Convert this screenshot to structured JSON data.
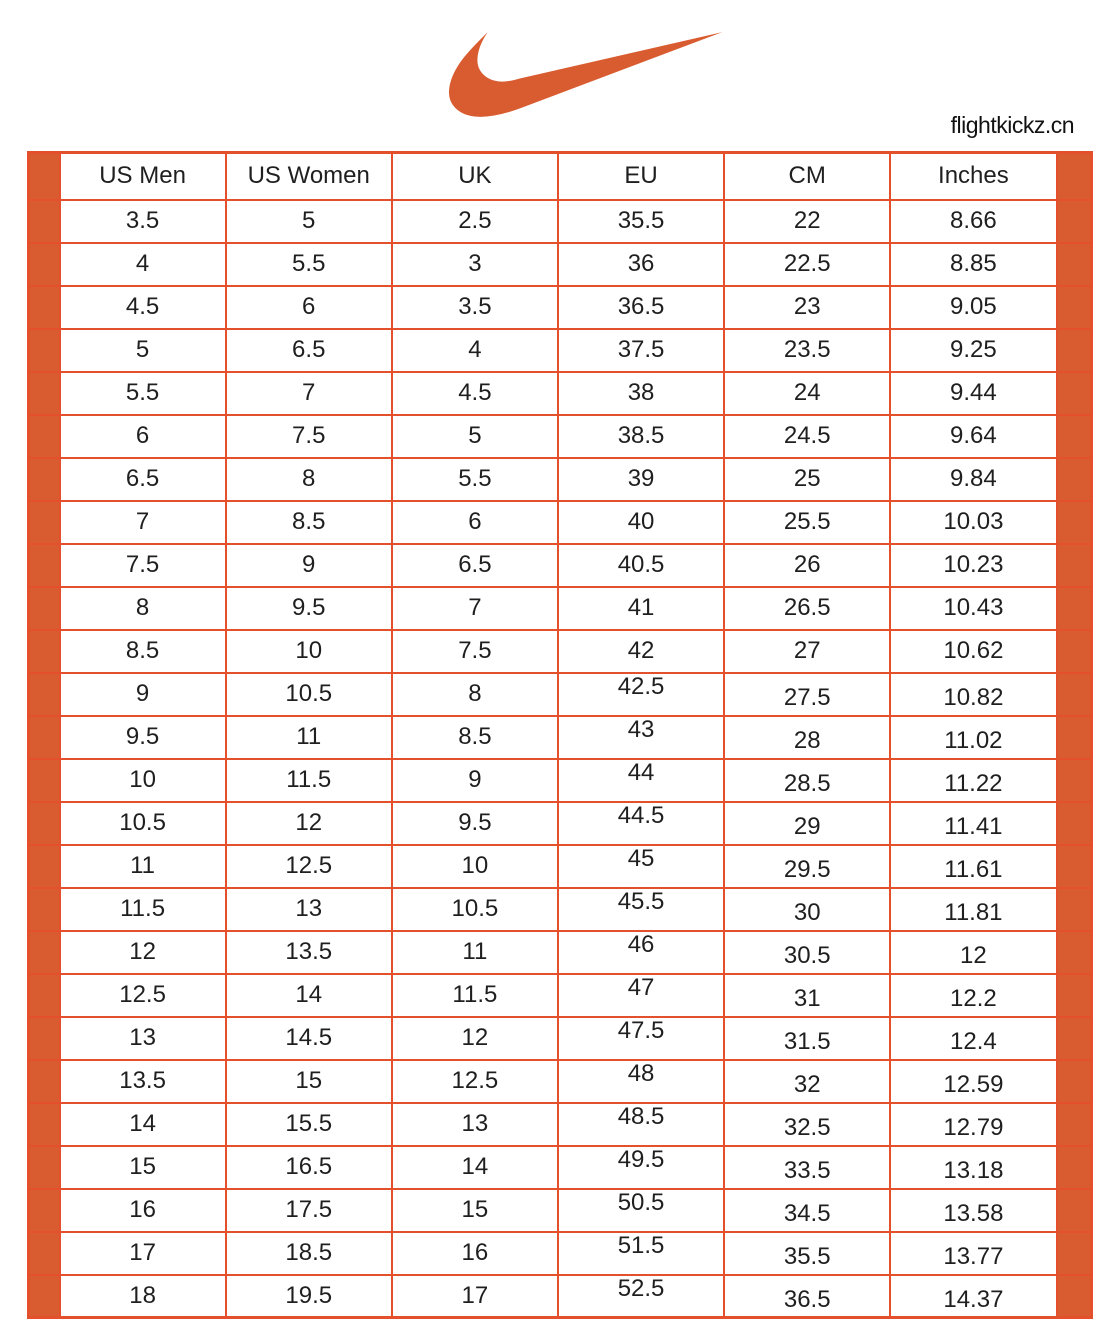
{
  "brand": "flightkickz.cn",
  "logo": "nike-swoosh",
  "colors": {
    "accent": "#D95C31",
    "grid_line": "#E4502B",
    "text": "#1F1F1F"
  },
  "chart_data": {
    "type": "table",
    "columns": [
      "US Men",
      "US Women",
      "UK",
      "EU",
      "CM",
      "Inches"
    ],
    "rows": [
      [
        "3.5",
        "5",
        "2.5",
        "35.5",
        "22",
        "8.66"
      ],
      [
        "4",
        "5.5",
        "3",
        "36",
        "22.5",
        "8.85"
      ],
      [
        "4.5",
        "6",
        "3.5",
        "36.5",
        "23",
        "9.05"
      ],
      [
        "5",
        "6.5",
        "4",
        "37.5",
        "23.5",
        "9.25"
      ],
      [
        "5.5",
        "7",
        "4.5",
        "38",
        "24",
        "9.44"
      ],
      [
        "6",
        "7.5",
        "5",
        "38.5",
        "24.5",
        "9.64"
      ],
      [
        "6.5",
        "8",
        "5.5",
        "39",
        "25",
        "9.84"
      ],
      [
        "7",
        "8.5",
        "6",
        "40",
        "25.5",
        "10.03"
      ],
      [
        "7.5",
        "9",
        "6.5",
        "40.5",
        "26",
        "10.23"
      ],
      [
        "8",
        "9.5",
        "7",
        "41",
        "26.5",
        "10.43"
      ],
      [
        "8.5",
        "10",
        "7.5",
        "42",
        "27",
        "10.62"
      ],
      [
        "9",
        "10.5",
        "8",
        "42.5",
        "27.5",
        "10.82"
      ],
      [
        "9.5",
        "11",
        "8.5",
        "43",
        "28",
        "11.02"
      ],
      [
        "10",
        "11.5",
        "9",
        "44",
        "28.5",
        "11.22"
      ],
      [
        "10.5",
        "12",
        "9.5",
        "44.5",
        "29",
        "11.41"
      ],
      [
        "11",
        "12.5",
        "10",
        "45",
        "29.5",
        "11.61"
      ],
      [
        "11.5",
        "13",
        "10.5",
        "45.5",
        "30",
        "11.81"
      ],
      [
        "12",
        "13.5",
        "11",
        "46",
        "30.5",
        "12"
      ],
      [
        "12.5",
        "14",
        "11.5",
        "47",
        "31",
        "12.2"
      ],
      [
        "13",
        "14.5",
        "12",
        "47.5",
        "31.5",
        "12.4"
      ],
      [
        "13.5",
        "15",
        "12.5",
        "48",
        "32",
        "12.59"
      ],
      [
        "14",
        "15.5",
        "13",
        "48.5",
        "32.5",
        "12.79"
      ],
      [
        "15",
        "16.5",
        "14",
        "49.5",
        "33.5",
        "13.18"
      ],
      [
        "16",
        "17.5",
        "15",
        "50.5",
        "34.5",
        "13.58"
      ],
      [
        "17",
        "18.5",
        "16",
        "51.5",
        "35.5",
        "13.77"
      ],
      [
        "18",
        "19.5",
        "17",
        "52.5",
        "36.5",
        "14.37"
      ]
    ],
    "layout": {
      "legend": "none",
      "grid": "on",
      "eu_values_top_aligned_from_row": 12,
      "cm_inches_values_low_aligned_from_row": 12
    }
  }
}
